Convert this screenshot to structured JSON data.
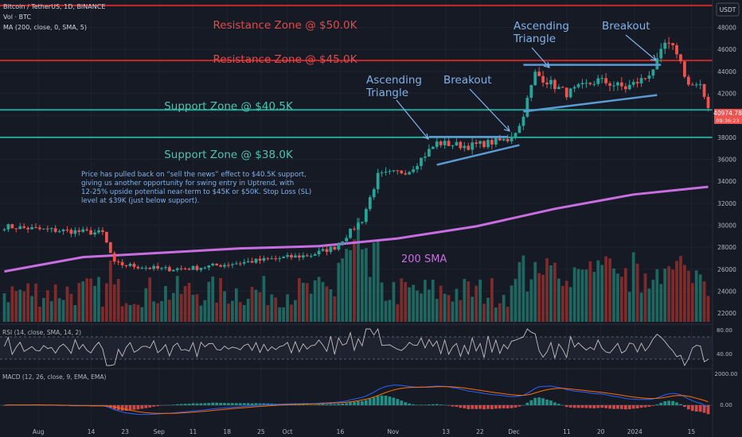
{
  "header": {
    "line1": "Bitcoin / TetherUS, 1D, BINANCE",
    "line2": "Vol · BTC",
    "line3": "MA (200, close, 0, SMA, 5)"
  },
  "currency_badge": "USDT",
  "indicators": {
    "rsi_label": "RSI (14, close, SMA, 14, 2)",
    "macd_label": "MACD (12, 26, close, 9, EMA, EMA)"
  },
  "price_tag": {
    "price": "40974.78",
    "time": "09:36:23"
  },
  "annotations": {
    "resistance_50": "Resistance Zone @ $50.0K",
    "resistance_45": "Resistance Zone @ $45.0K",
    "support_405": "Support Zone @ $40.5K",
    "support_38": "Support Zone @ $38.0K",
    "asc_tri_1": [
      "Ascending",
      "Triangle"
    ],
    "breakout_1": "Breakout",
    "asc_tri_2": [
      "Ascending",
      "Triangle"
    ],
    "breakout_2": "Breakout",
    "sma_label": "200 SMA",
    "note": [
      "Price has pulled back on “sell the news” effect to $40.5K support,",
      "giving us another opportunity for swing entry in Uptrend, with",
      "12-25% upside potential near-term to $45K or $50K. Stop Loss (SL)",
      "level at $39K (just below support)."
    ]
  },
  "colors": {
    "background": "#161a25",
    "up": "#26a69a",
    "down": "#ef5350",
    "resistance": "#c62828",
    "support": "#26a69a",
    "sma": "#c86ee0",
    "trendline": "#5b9bd5",
    "annotation_blue": "#82b1e8",
    "annotation_red": "#e04a4a",
    "annotation_green": "#4fc3b0",
    "macd_line": "#2962ff",
    "signal_line": "#ff6d00",
    "rsi_line": "#c0c0c0"
  },
  "chart_data": {
    "type": "candlestick",
    "ylim": [
      21000,
      50500
    ],
    "y_ticks": [
      22000,
      24000,
      26000,
      28000,
      30000,
      32000,
      34000,
      36000,
      38000,
      40000,
      42000,
      44000,
      46000,
      48000
    ],
    "x_labels": [
      "Aug",
      "14",
      "23",
      "Sep",
      "11",
      "18",
      "25",
      "Oct",
      "16",
      "Nov",
      "13",
      "22",
      "Dec",
      "11",
      "20",
      "2024",
      "15"
    ],
    "levels": [
      {
        "name": "resistance_50k",
        "value": 50000
      },
      {
        "name": "resistance_45k",
        "value": 45000
      },
      {
        "name": "support_40_5k",
        "value": 40500
      },
      {
        "name": "support_38k",
        "value": 38000
      }
    ],
    "price_segments": [
      {
        "from": 0,
        "to": 10,
        "start": 29900,
        "end": 29600
      },
      {
        "from": 10,
        "to": 20,
        "start": 29600,
        "end": 29400
      },
      {
        "from": 20,
        "to": 25,
        "start": 29400,
        "end": 29300
      },
      {
        "from": 25,
        "to": 28,
        "start": 29300,
        "end": 26500
      },
      {
        "from": 28,
        "to": 40,
        "start": 26500,
        "end": 26000
      },
      {
        "from": 40,
        "to": 48,
        "start": 26000,
        "end": 26100
      },
      {
        "from": 48,
        "to": 60,
        "start": 26100,
        "end": 26600
      },
      {
        "from": 60,
        "to": 70,
        "start": 26600,
        "end": 27000
      },
      {
        "from": 70,
        "to": 78,
        "start": 27000,
        "end": 27300
      },
      {
        "from": 78,
        "to": 84,
        "start": 27300,
        "end": 28000
      },
      {
        "from": 84,
        "to": 91,
        "start": 28000,
        "end": 30500
      },
      {
        "from": 91,
        "to": 95,
        "start": 30500,
        "end": 34500
      },
      {
        "from": 95,
        "to": 103,
        "start": 34500,
        "end": 35000
      },
      {
        "from": 103,
        "to": 110,
        "start": 35000,
        "end": 37500
      },
      {
        "from": 110,
        "to": 118,
        "start": 37500,
        "end": 37200
      },
      {
        "from": 118,
        "to": 128,
        "start": 37200,
        "end": 37800
      },
      {
        "from": 128,
        "to": 131,
        "start": 37800,
        "end": 39000
      },
      {
        "from": 131,
        "to": 135,
        "start": 39000,
        "end": 43800
      },
      {
        "from": 135,
        "to": 143,
        "start": 43800,
        "end": 42000
      },
      {
        "from": 143,
        "to": 151,
        "start": 42000,
        "end": 43200
      },
      {
        "from": 151,
        "to": 158,
        "start": 43200,
        "end": 42500
      },
      {
        "from": 158,
        "to": 163,
        "start": 42500,
        "end": 43400
      },
      {
        "from": 163,
        "to": 166,
        "start": 43400,
        "end": 44800
      },
      {
        "from": 166,
        "to": 168,
        "start": 44800,
        "end": 46500
      },
      {
        "from": 168,
        "to": 171,
        "start": 46500,
        "end": 45800
      },
      {
        "from": 171,
        "to": 174,
        "start": 45800,
        "end": 42800
      },
      {
        "from": 174,
        "to": 177,
        "start": 42800,
        "end": 42500
      },
      {
        "from": 177,
        "to": 179,
        "start": 42500,
        "end": 40900
      }
    ],
    "sma_200": [
      {
        "x": 0,
        "y": 25800
      },
      {
        "x": 20,
        "y": 27100
      },
      {
        "x": 40,
        "y": 27500
      },
      {
        "x": 60,
        "y": 27900
      },
      {
        "x": 80,
        "y": 28100
      },
      {
        "x": 100,
        "y": 28800
      },
      {
        "x": 120,
        "y": 29900
      },
      {
        "x": 140,
        "y": 31500
      },
      {
        "x": 160,
        "y": 32800
      },
      {
        "x": 179,
        "y": 33500
      }
    ],
    "rsi_levels": [
      80.0,
      40.0
    ],
    "macd_levels": [
      2000.0,
      0.0
    ]
  }
}
